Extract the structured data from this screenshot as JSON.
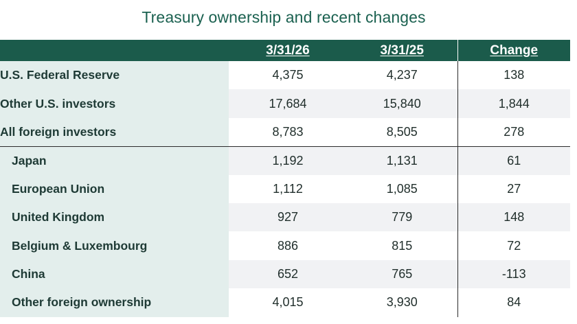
{
  "title": "Treasury ownership and recent changes",
  "table": {
    "columns": [
      "",
      "3/31/26",
      "3/31/25",
      "Change"
    ],
    "rows": [
      {
        "label": "U.S. Federal Reserve",
        "v2026": "4,375",
        "v2025": "4,237",
        "change": "138"
      },
      {
        "label": "Other U.S. investors",
        "v2026": "17,684",
        "v2025": "15,840",
        "change": "1,844"
      },
      {
        "label": "All foreign investors",
        "v2026": "8,783",
        "v2025": "8,505",
        "change": "278"
      },
      {
        "label": "Japan",
        "v2026": "1,192",
        "v2025": "1,131",
        "change": "61"
      },
      {
        "label": "European Union",
        "v2026": "1,112",
        "v2025": "1,085",
        "change": "27"
      },
      {
        "label": "United Kingdom",
        "v2026": "927",
        "v2025": "779",
        "change": "148"
      },
      {
        "label": "Belgium & Luxembourg",
        "v2026": "886",
        "v2025": "815",
        "change": "72"
      },
      {
        "label": "China",
        "v2026": "652",
        "v2025": "765",
        "change": "-113"
      },
      {
        "label": "Other foreign ownership",
        "v2026": "4,015",
        "v2025": "3,930",
        "change": "84"
      }
    ]
  },
  "colors": {
    "title": "#1b6150",
    "header_bg": "#1b5b4b",
    "label_bg": "#e3eeec",
    "stripe_bg": "#f1f2f4"
  }
}
